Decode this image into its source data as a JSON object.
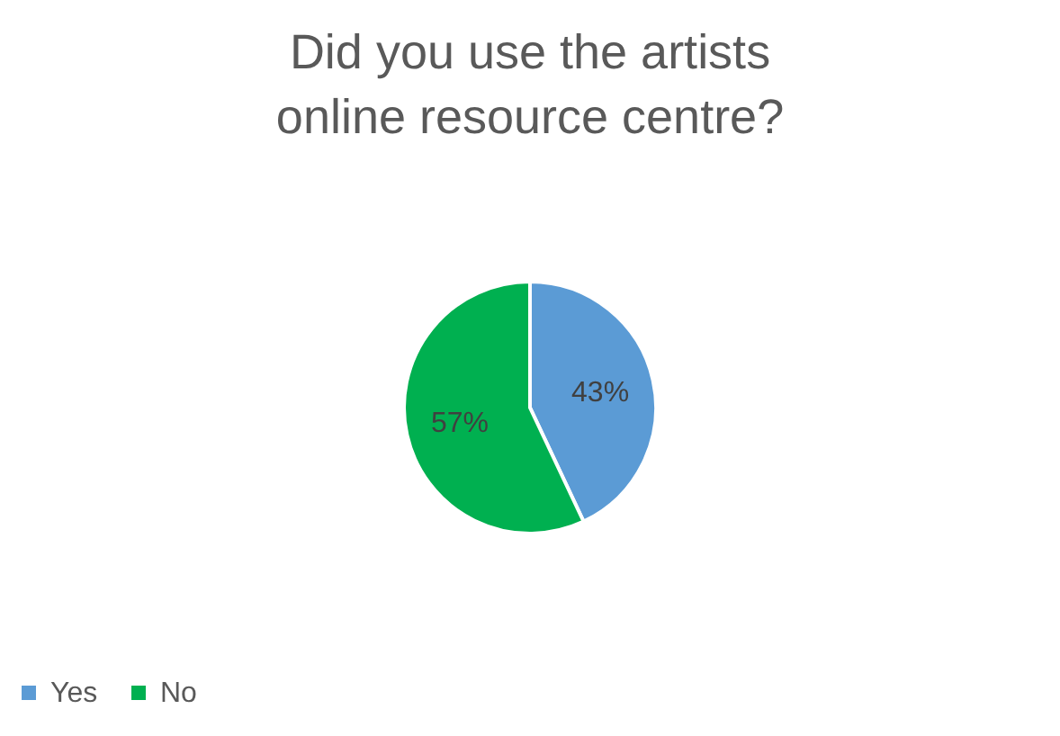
{
  "chart_data": {
    "type": "pie",
    "title": "Did you use the artists online resource centre?",
    "categories": [
      "Yes",
      "No"
    ],
    "values": [
      43,
      57
    ],
    "colors": [
      "#5b9bd5",
      "#00b050"
    ],
    "value_labels": [
      "43%",
      "57%"
    ],
    "legend": "bottom"
  }
}
